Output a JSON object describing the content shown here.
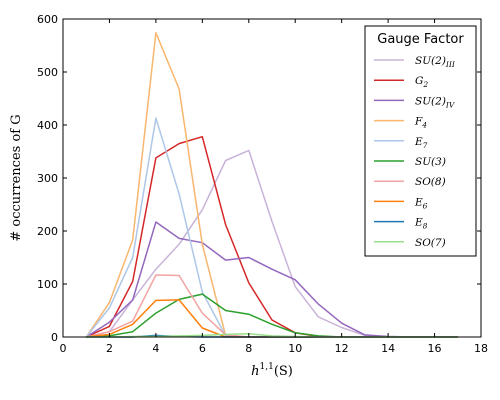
{
  "chart_data": {
    "type": "line",
    "xlabel": "h^{1,1}(S)",
    "ylabel": "# occurrences of G",
    "xlim": [
      0,
      18
    ],
    "ylim": [
      0,
      600
    ],
    "xticks": [
      0,
      2,
      4,
      6,
      8,
      10,
      12,
      14,
      16,
      18
    ],
    "yticks": [
      0,
      100,
      200,
      300,
      400,
      500,
      600
    ],
    "grid": false,
    "legend": {
      "title": "Gauge Factor",
      "position": "top-right"
    },
    "series": [
      {
        "name": "SU(2)",
        "sub": "III",
        "color": "#c9b4d9",
        "x": [
          1,
          2,
          3,
          4,
          5,
          6,
          7,
          8,
          9,
          10,
          11,
          12,
          13,
          14,
          15,
          16,
          17
        ],
        "y": [
          0,
          10,
          70,
          128,
          175,
          240,
          333,
          352,
          218,
          95,
          38,
          18,
          3,
          1,
          0,
          0,
          0
        ]
      },
      {
        "name": "G",
        "sub": "2",
        "color": "#d62728",
        "x": [
          1,
          2,
          3,
          4,
          5,
          6,
          7,
          8,
          9,
          10,
          11,
          12,
          13,
          14,
          15,
          16,
          17
        ],
        "y": [
          0,
          20,
          105,
          338,
          365,
          378,
          212,
          102,
          32,
          8,
          1,
          0,
          0,
          0,
          0,
          0,
          0
        ]
      },
      {
        "name": "SU(2)",
        "sub": "IV",
        "color": "#9467bd",
        "x": [
          1,
          2,
          3,
          4,
          5,
          6,
          7,
          8,
          9,
          10,
          11,
          12,
          13,
          14,
          15,
          16,
          17
        ],
        "y": [
          0,
          28,
          70,
          217,
          186,
          178,
          145,
          150,
          128,
          108,
          62,
          26,
          4,
          1,
          0,
          0,
          0
        ]
      },
      {
        "name": "F",
        "sub": "4",
        "color": "#f8b66e",
        "x": [
          1,
          2,
          3,
          4,
          5,
          6,
          7,
          8,
          9,
          10,
          11,
          12,
          13,
          14,
          15,
          16,
          17
        ],
        "y": [
          0,
          65,
          183,
          574,
          468,
          175,
          3,
          0,
          0,
          0,
          0,
          0,
          0,
          0,
          0,
          0,
          0
        ]
      },
      {
        "name": "E",
        "sub": "7",
        "color": "#aec7e8",
        "x": [
          1,
          2,
          3,
          4,
          5,
          6,
          7,
          8,
          9,
          10,
          11,
          12,
          13,
          14,
          15,
          16,
          17
        ],
        "y": [
          0,
          55,
          150,
          413,
          270,
          85,
          2,
          0,
          0,
          0,
          0,
          0,
          0,
          0,
          0,
          0,
          0
        ]
      },
      {
        "name": "SU(3)",
        "sub": "",
        "color": "#2ca02c",
        "x": [
          1,
          2,
          3,
          4,
          5,
          6,
          7,
          8,
          9,
          10,
          11,
          12,
          13,
          14,
          15,
          16,
          17
        ],
        "y": [
          0,
          2,
          10,
          45,
          71,
          81,
          50,
          43,
          24,
          8,
          2,
          0,
          0,
          0,
          0,
          0,
          0
        ]
      },
      {
        "name": "SO(8)",
        "sub": "",
        "color": "#f2a3a3",
        "x": [
          1,
          2,
          3,
          4,
          5,
          6,
          7,
          8,
          9,
          10,
          11,
          12,
          13,
          14,
          15,
          16,
          17
        ],
        "y": [
          0,
          10,
          30,
          117,
          116,
          45,
          4,
          0,
          0,
          0,
          0,
          0,
          0,
          0,
          0,
          0,
          0
        ]
      },
      {
        "name": "E",
        "sub": "6",
        "color": "#ff7f0e",
        "x": [
          1,
          2,
          3,
          4,
          5,
          6,
          7,
          8,
          9,
          10,
          11,
          12,
          13,
          14,
          15,
          16,
          17
        ],
        "y": [
          0,
          5,
          24,
          69,
          70,
          17,
          0,
          0,
          0,
          0,
          0,
          0,
          0,
          0,
          0,
          0,
          0
        ]
      },
      {
        "name": "E",
        "sub": "8",
        "color": "#1f77b4",
        "x": [
          1,
          2,
          3,
          4,
          5,
          6,
          7,
          8,
          9,
          10,
          11,
          12,
          13,
          14,
          15,
          16,
          17
        ],
        "y": [
          0,
          0,
          0,
          3,
          1,
          0,
          0,
          0,
          0,
          0,
          0,
          0,
          0,
          0,
          0,
          0,
          0
        ]
      },
      {
        "name": "SO(7)",
        "sub": "",
        "color": "#98df8a",
        "x": [
          1,
          2,
          3,
          4,
          5,
          6,
          7,
          8,
          9,
          10,
          11,
          12,
          13,
          14,
          15,
          16,
          17
        ],
        "y": [
          0,
          0,
          1,
          1,
          2,
          3,
          5,
          6,
          2,
          1,
          0,
          0,
          0,
          0,
          0,
          0,
          0
        ]
      }
    ]
  }
}
